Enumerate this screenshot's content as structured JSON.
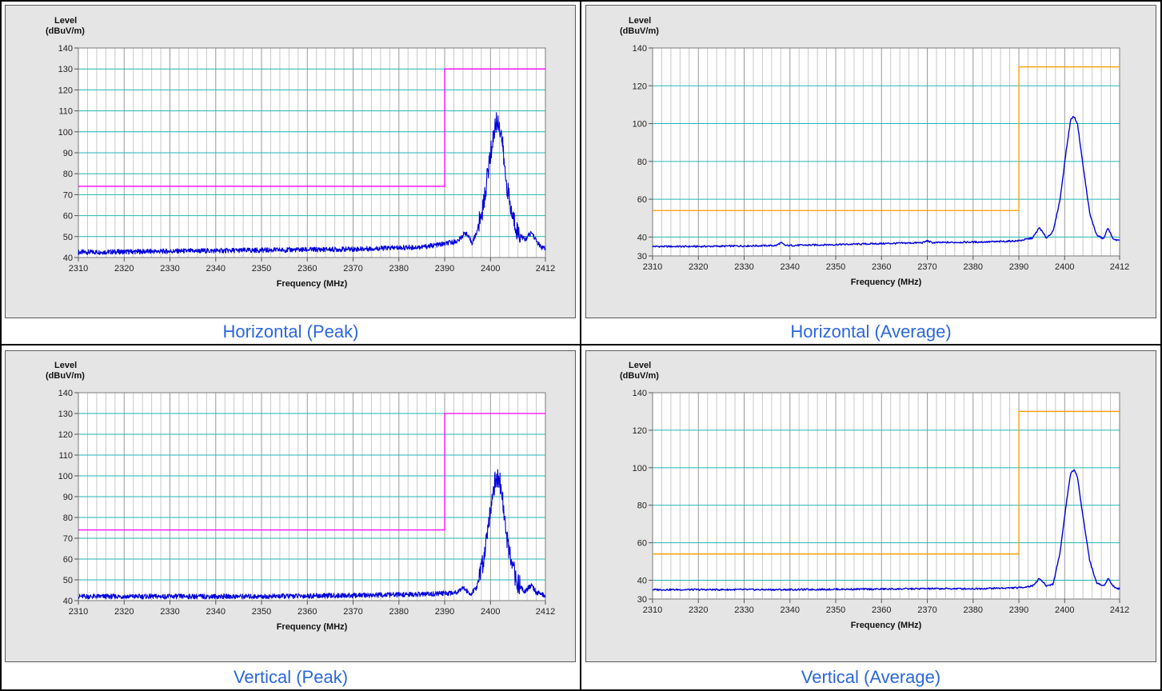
{
  "charts": [
    {
      "caption": "Horizontal (Peak)",
      "ylabel_line1": "Level",
      "ylabel_line2": "(dBuV/m)",
      "xlabel": "Frequency (MHz)"
    },
    {
      "caption": "Horizontal (Average)",
      "ylabel_line1": "Level",
      "ylabel_line2": "(dBuV/m)",
      "xlabel": "Frequency (MHz)"
    },
    {
      "caption": "Vertical (Peak)",
      "ylabel_line1": "Level",
      "ylabel_line2": "(dBuV/m)",
      "xlabel": "Frequency (MHz)"
    },
    {
      "caption": "Vertical (Average)",
      "ylabel_line1": "Level",
      "ylabel_line2": "(dBuV/m)",
      "xlabel": "Frequency (MHz)"
    }
  ],
  "chart_data": [
    {
      "type": "line",
      "title": "Horizontal (Peak)",
      "xlabel": "Frequency (MHz)",
      "ylabel": "Level (dBuV/m)",
      "xlim": [
        2310,
        2412
      ],
      "ylim": [
        40,
        140
      ],
      "xticks": [
        2310,
        2320,
        2330,
        2340,
        2350,
        2360,
        2370,
        2380,
        2390,
        2400,
        2412
      ],
      "yticks": [
        40,
        50,
        60,
        70,
        80,
        90,
        100,
        110,
        120,
        130,
        140
      ],
      "limit_color": "#ff00ff",
      "trace_color": "#0000dd",
      "grid": true,
      "series": [
        {
          "kind": "limit",
          "x": [
            2310,
            2390,
            2390,
            2412
          ],
          "y": [
            74,
            74,
            130,
            130
          ]
        },
        {
          "kind": "trace",
          "x": [
            2310,
            2330,
            2350,
            2370,
            2385,
            2390,
            2393,
            2394.5,
            2396,
            2397,
            2398.5,
            2399.5,
            2400.5,
            2401.2,
            2401.8,
            2402.5,
            2403.2,
            2404.5,
            2406,
            2407.5,
            2409,
            2410,
            2411,
            2412
          ],
          "y": [
            42.5,
            43,
            43.5,
            44,
            45,
            46.5,
            48,
            52,
            47,
            52,
            65,
            82,
            96,
            104.5,
            104.5,
            97,
            80,
            62,
            52,
            48.5,
            52,
            48,
            45,
            44
          ]
        }
      ]
    },
    {
      "type": "line",
      "title": "Horizontal (Average)",
      "xlabel": "Frequency (MHz)",
      "ylabel": "Level (dBuV/m)",
      "xlim": [
        2310,
        2412
      ],
      "ylim": [
        30,
        140
      ],
      "xticks": [
        2310,
        2320,
        2330,
        2340,
        2350,
        2360,
        2370,
        2380,
        2390,
        2400,
        2412
      ],
      "yticks": [
        30,
        40,
        60,
        80,
        100,
        120,
        140
      ],
      "limit_color": "#ff9900",
      "trace_color": "#0000dd",
      "grid": true,
      "series": [
        {
          "kind": "limit",
          "x": [
            2310,
            2390,
            2390,
            2412
          ],
          "y": [
            54,
            54,
            130,
            130
          ]
        },
        {
          "kind": "trace",
          "x": [
            2310,
            2320,
            2337,
            2338,
            2339,
            2350,
            2369,
            2370,
            2371,
            2385,
            2390,
            2393,
            2394.5,
            2396,
            2397.5,
            2399,
            2400.3,
            2401.3,
            2402,
            2402.8,
            2404,
            2405.5,
            2407,
            2408.5,
            2409.5,
            2410.3,
            2411,
            2412
          ],
          "y": [
            35,
            35,
            35.5,
            37,
            35.5,
            36,
            37,
            38,
            37,
            37.5,
            38,
            39.5,
            45,
            39.5,
            43,
            60,
            85,
            102,
            104,
            100,
            78,
            52,
            41,
            39,
            45,
            40,
            38.5,
            38
          ]
        }
      ]
    },
    {
      "type": "line",
      "title": "Vertical (Peak)",
      "xlabel": "Frequency (MHz)",
      "ylabel": "Level (dBuV/m)",
      "xlim": [
        2310,
        2412
      ],
      "ylim": [
        40,
        140
      ],
      "xticks": [
        2310,
        2320,
        2330,
        2340,
        2350,
        2360,
        2370,
        2380,
        2390,
        2400,
        2412
      ],
      "yticks": [
        40,
        50,
        60,
        70,
        80,
        90,
        100,
        110,
        120,
        130,
        140
      ],
      "limit_color": "#ff00ff",
      "trace_color": "#0000dd",
      "grid": true,
      "series": [
        {
          "kind": "limit",
          "x": [
            2310,
            2390,
            2390,
            2412
          ],
          "y": [
            74,
            74,
            130,
            130
          ]
        },
        {
          "kind": "trace",
          "x": [
            2310,
            2330,
            2350,
            2370,
            2385,
            2390,
            2392.5,
            2394,
            2395.5,
            2397,
            2398.5,
            2399.5,
            2400.5,
            2401.2,
            2401.9,
            2402.6,
            2403.3,
            2404.5,
            2406,
            2407.5,
            2409,
            2410,
            2411,
            2412
          ],
          "y": [
            42,
            42,
            42,
            42.5,
            43,
            43.5,
            44,
            46.5,
            43,
            46,
            60,
            77,
            92,
            99,
            99,
            90,
            74,
            58,
            48,
            44.5,
            47.5,
            44,
            43,
            42.5
          ]
        }
      ]
    },
    {
      "type": "line",
      "title": "Vertical (Average)",
      "xlabel": "Frequency (MHz)",
      "ylabel": "Level (dBuV/m)",
      "xlim": [
        2310,
        2412
      ],
      "ylim": [
        30,
        140
      ],
      "xticks": [
        2310,
        2320,
        2330,
        2340,
        2350,
        2360,
        2370,
        2380,
        2390,
        2400,
        2412
      ],
      "yticks": [
        30,
        40,
        60,
        80,
        100,
        120,
        140
      ],
      "limit_color": "#ff9900",
      "trace_color": "#0000dd",
      "grid": true,
      "series": [
        {
          "kind": "limit",
          "x": [
            2310,
            2390,
            2390,
            2412
          ],
          "y": [
            54,
            54,
            130,
            130
          ]
        },
        {
          "kind": "trace",
          "x": [
            2310,
            2320,
            2330,
            2340,
            2350,
            2360,
            2370,
            2380,
            2390,
            2393,
            2394.5,
            2396,
            2397.5,
            2399,
            2400.3,
            2401.3,
            2402,
            2402.8,
            2404,
            2405.5,
            2407,
            2408.5,
            2409.5,
            2410.3,
            2411,
            2412
          ],
          "y": [
            35,
            35,
            35,
            35,
            35.2,
            35.3,
            35.5,
            35.5,
            36,
            37,
            41,
            37,
            38,
            55,
            80,
            97,
            99,
            95,
            74,
            50,
            38.5,
            37,
            41,
            38,
            36,
            35.5
          ]
        }
      ]
    }
  ]
}
